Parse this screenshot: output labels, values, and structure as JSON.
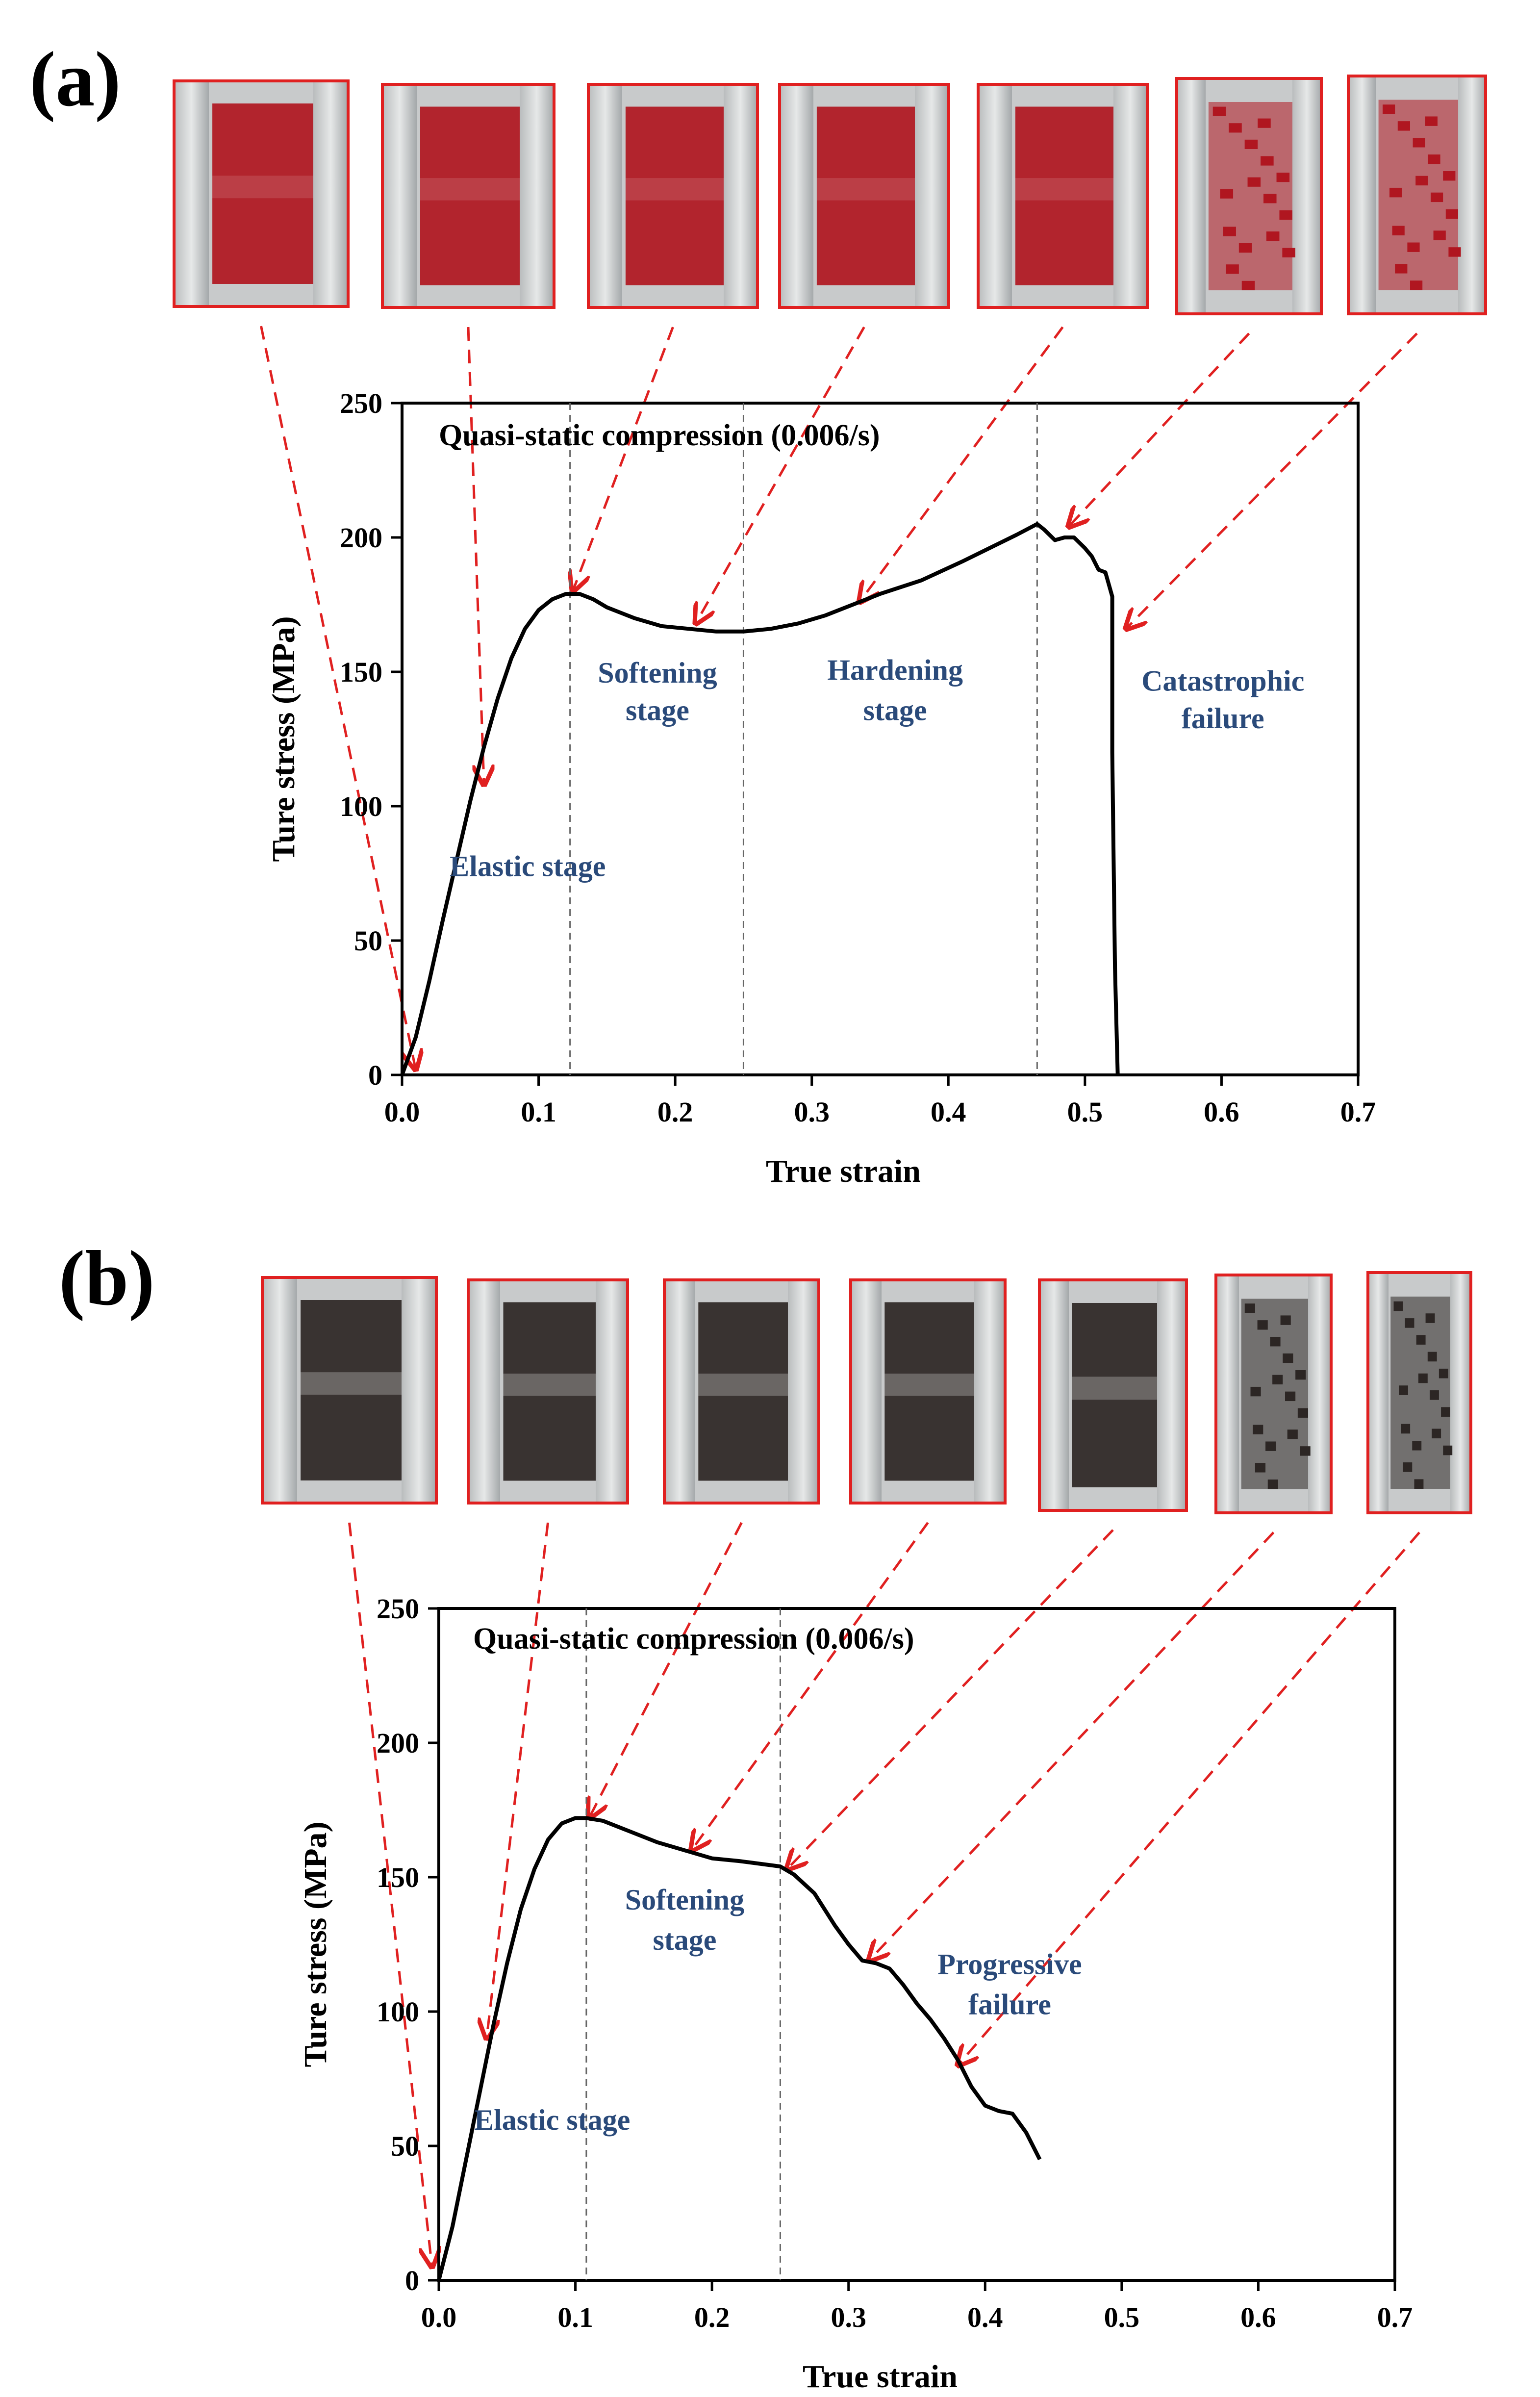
{
  "panels": [
    {
      "panel_label": "(a)",
      "photo_count": 7,
      "photo_tint": "#b01620",
      "arrow_targets": [
        [
          0.01,
          2
        ],
        [
          0.06,
          108
        ],
        [
          0.125,
          180
        ],
        [
          0.215,
          168
        ],
        [
          0.335,
          176
        ],
        [
          0.488,
          204
        ],
        [
          0.53,
          166
        ]
      ]
    },
    {
      "panel_label": "(b)",
      "photo_count": 7,
      "photo_tint": "#2c2624",
      "arrow_targets": [
        [
          -0.005,
          5
        ],
        [
          0.035,
          90
        ],
        [
          0.11,
          172
        ],
        [
          0.185,
          160
        ],
        [
          0.255,
          153
        ],
        [
          0.315,
          119
        ],
        [
          0.38,
          80
        ]
      ]
    }
  ],
  "chart_data": [
    {
      "type": "line",
      "title": "Quasi-static compression (0.006/s)",
      "xlabel": "True strain",
      "ylabel": "Ture stress (MPa)",
      "xlim": [
        0.0,
        0.7
      ],
      "ylim": [
        0,
        250
      ],
      "xticks": [
        "0.0",
        "0.1",
        "0.2",
        "0.3",
        "0.4",
        "0.5",
        "0.6",
        "0.7"
      ],
      "yticks": [
        "0",
        "50",
        "100",
        "150",
        "200",
        "250"
      ],
      "stage_boundaries": [
        0.123,
        0.25,
        0.465
      ],
      "stage_labels": [
        {
          "text": "Elastic stage",
          "x": 0.092,
          "y": 74
        },
        {
          "text": "Softening",
          "x": 0.187,
          "y": 146
        },
        {
          "text": "stage",
          "x": 0.187,
          "y": 132
        },
        {
          "text": "Hardening",
          "x": 0.361,
          "y": 147
        },
        {
          "text": "stage",
          "x": 0.361,
          "y": 132
        },
        {
          "text": "Catastrophic",
          "x": 0.601,
          "y": 143
        },
        {
          "text": "failure",
          "x": 0.601,
          "y": 129
        }
      ],
      "series": [
        {
          "name": "stress-strain",
          "color": "#000000",
          "x": [
            0.0,
            0.01,
            0.02,
            0.03,
            0.04,
            0.05,
            0.06,
            0.07,
            0.08,
            0.09,
            0.1,
            0.11,
            0.12,
            0.13,
            0.14,
            0.15,
            0.17,
            0.19,
            0.21,
            0.23,
            0.25,
            0.27,
            0.29,
            0.31,
            0.33,
            0.35,
            0.38,
            0.41,
            0.43,
            0.45,
            0.465,
            0.47,
            0.478,
            0.485,
            0.492,
            0.5,
            0.505,
            0.51,
            0.515,
            0.52,
            0.52,
            0.522,
            0.524
          ],
          "y": [
            0,
            14,
            35,
            58,
            80,
            102,
            122,
            140,
            155,
            166,
            173,
            177,
            179,
            179,
            177,
            174,
            170,
            167,
            166,
            165,
            165,
            166,
            168,
            171,
            175,
            179,
            184,
            191,
            196,
            201,
            205,
            203,
            199,
            200,
            200,
            196,
            193,
            188,
            187,
            178,
            120,
            40,
            0
          ]
        }
      ]
    },
    {
      "type": "line",
      "title": "Quasi-static compression (0.006/s)",
      "xlabel": "True strain",
      "ylabel": "Ture stress (MPa)",
      "xlim": [
        0.0,
        0.7
      ],
      "ylim": [
        0,
        250
      ],
      "xticks": [
        "0.0",
        "0.1",
        "0.2",
        "0.3",
        "0.4",
        "0.5",
        "0.6",
        "0.7"
      ],
      "yticks": [
        "0",
        "50",
        "100",
        "150",
        "200",
        "250"
      ],
      "stage_boundaries": [
        0.108,
        0.25
      ],
      "stage_labels": [
        {
          "text": "Elastic stage",
          "x": 0.083,
          "y": 56
        },
        {
          "text": "Softening",
          "x": 0.18,
          "y": 138
        },
        {
          "text": "stage",
          "x": 0.18,
          "y": 123
        },
        {
          "text": "Progressive",
          "x": 0.418,
          "y": 114
        },
        {
          "text": "failure",
          "x": 0.418,
          "y": 99
        }
      ],
      "series": [
        {
          "name": "stress-strain",
          "color": "#000000",
          "x": [
            0.0,
            0.01,
            0.02,
            0.03,
            0.04,
            0.05,
            0.06,
            0.07,
            0.08,
            0.09,
            0.1,
            0.108,
            0.12,
            0.14,
            0.16,
            0.18,
            0.2,
            0.22,
            0.25,
            0.26,
            0.275,
            0.29,
            0.3,
            0.31,
            0.32,
            0.33,
            0.34,
            0.35,
            0.36,
            0.37,
            0.38,
            0.39,
            0.4,
            0.41,
            0.42,
            0.43,
            0.44
          ],
          "y": [
            0,
            20,
            45,
            70,
            95,
            118,
            138,
            153,
            164,
            170,
            172,
            172,
            171,
            167,
            163,
            160,
            157,
            156,
            154,
            151,
            144,
            132,
            125,
            119,
            118,
            116,
            110,
            103,
            97,
            90,
            82,
            72,
            65,
            63,
            62,
            55,
            45
          ]
        }
      ]
    }
  ]
}
